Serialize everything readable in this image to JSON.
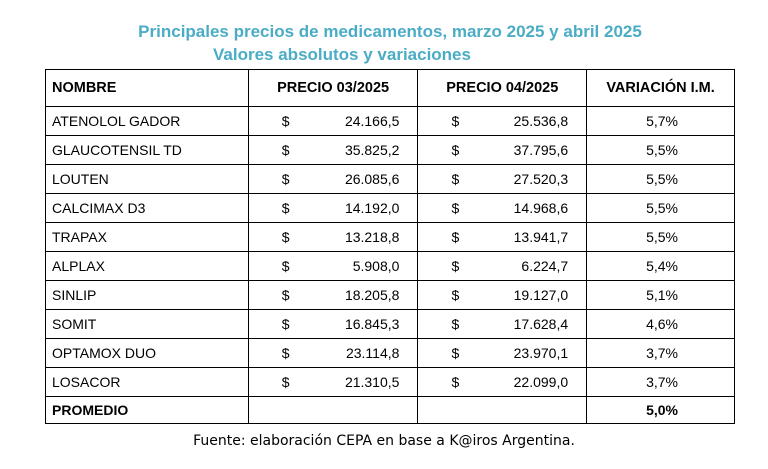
{
  "title_line1": "Principales precios de medicamentos, marzo 2025 y abril 2025",
  "title_line2": "Valores absolutos y variaciones",
  "headers": {
    "nombre": "NOMBRE",
    "precio_03": "PRECIO 03/2025",
    "precio_04": "PRECIO 04/2025",
    "variacion": "VARIACIÓN I.M."
  },
  "currency_symbol": "$",
  "rows": [
    {
      "nombre": "ATENOLOL GADOR",
      "p03": "24.166,5",
      "p04": "25.536,8",
      "var": "5,7%"
    },
    {
      "nombre": "GLAUCOTENSIL TD",
      "p03": "35.825,2",
      "p04": "37.795,6",
      "var": "5,5%"
    },
    {
      "nombre": "LOUTEN",
      "p03": "26.085,6",
      "p04": "27.520,3",
      "var": "5,5%"
    },
    {
      "nombre": "CALCIMAX D3",
      "p03": "14.192,0",
      "p04": "14.968,6",
      "var": "5,5%"
    },
    {
      "nombre": "TRAPAX",
      "p03": "13.218,8",
      "p04": "13.941,7",
      "var": "5,5%"
    },
    {
      "nombre": "ALPLAX",
      "p03": "5.908,0",
      "p04": "6.224,7",
      "var": "5,4%"
    },
    {
      "nombre": "SINLIP",
      "p03": "18.205,8",
      "p04": "19.127,0",
      "var": "5,1%"
    },
    {
      "nombre": "SOMIT",
      "p03": "16.845,3",
      "p04": "17.628,4",
      "var": "4,6%"
    },
    {
      "nombre": "OPTAMOX DUO",
      "p03": "23.114,8",
      "p04": "23.970,1",
      "var": "3,7%"
    },
    {
      "nombre": "LOSACOR",
      "p03": "21.310,5",
      "p04": "22.099,0",
      "var": "3,7%"
    }
  ],
  "footer": {
    "label": "PROMEDIO",
    "var": "5,0%"
  },
  "source": "Fuente: elaboración CEPA en base a K@iros Argentina.",
  "colors": {
    "title": "#4bacc6"
  }
}
